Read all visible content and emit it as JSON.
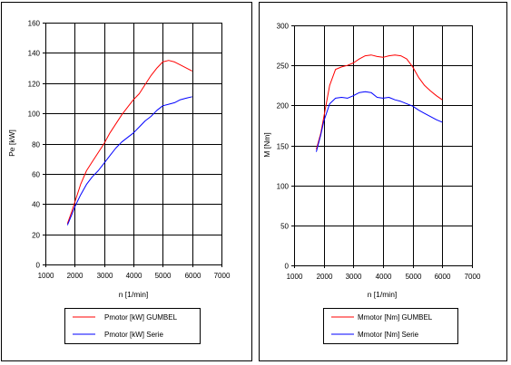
{
  "chart_data": [
    {
      "type": "line",
      "xlabel": "n [1/min]",
      "ylabel": "Pe [kW]",
      "xlim": [
        1000,
        7000
      ],
      "ylim": [
        0,
        160
      ],
      "xticks": [
        1000,
        2000,
        3000,
        4000,
        5000,
        6000,
        7000
      ],
      "yticks": [
        0,
        20,
        40,
        60,
        80,
        100,
        120,
        140,
        160
      ],
      "grid": true,
      "legend_position": "bottom",
      "series": [
        {
          "name": "Pmotor [kW] GUMBEL",
          "color": "#ff0000",
          "x": [
            1750,
            1900,
            2000,
            2200,
            2400,
            2600,
            2800,
            3000,
            3200,
            3400,
            3600,
            3800,
            4000,
            4200,
            4400,
            4600,
            4800,
            5000,
            5200,
            5400,
            5600,
            5800,
            6000
          ],
          "y": [
            27,
            35,
            41,
            53,
            62,
            68,
            74,
            80,
            87,
            93,
            99,
            104,
            109,
            113,
            119,
            125,
            130,
            134,
            135,
            134,
            132,
            130,
            128
          ]
        },
        {
          "name": "Pmotor [kW] Serie",
          "color": "#0000ff",
          "x": [
            1750,
            1900,
            2000,
            2200,
            2400,
            2600,
            2800,
            3000,
            3200,
            3400,
            3600,
            3800,
            4000,
            4200,
            4400,
            4600,
            4800,
            5000,
            5200,
            5400,
            5600,
            5800,
            6000
          ],
          "y": [
            26,
            33,
            38,
            46,
            53,
            58,
            62,
            67,
            72,
            77,
            81,
            84,
            87,
            91,
            95,
            98,
            102,
            105,
            106,
            107,
            109,
            110,
            111
          ]
        }
      ]
    },
    {
      "type": "line",
      "xlabel": "n [1/min]",
      "ylabel": "M [Nm]",
      "xlim": [
        1000,
        7000
      ],
      "ylim": [
        0,
        300
      ],
      "xticks": [
        1000,
        2000,
        3000,
        4000,
        5000,
        6000,
        7000
      ],
      "yticks": [
        0,
        50,
        100,
        150,
        200,
        250,
        300
      ],
      "grid": true,
      "legend_position": "bottom",
      "series": [
        {
          "name": "Mmotor [Nm] GUMBEL",
          "color": "#ff0000",
          "x": [
            1750,
            1900,
            2000,
            2200,
            2400,
            2600,
            2800,
            3000,
            3200,
            3400,
            3600,
            3800,
            4000,
            4200,
            4400,
            4600,
            4800,
            5000,
            5200,
            5400,
            5600,
            5800,
            6000
          ],
          "y": [
            145,
            165,
            185,
            225,
            245,
            248,
            250,
            253,
            258,
            262,
            263,
            261,
            260,
            262,
            263,
            262,
            258,
            248,
            235,
            225,
            218,
            212,
            207
          ]
        },
        {
          "name": "Mmotor [Nm] Serie",
          "color": "#0000ff",
          "x": [
            1750,
            1900,
            2000,
            2200,
            2400,
            2600,
            2800,
            3000,
            3200,
            3400,
            3600,
            3800,
            4000,
            4200,
            4400,
            4600,
            4800,
            5000,
            5200,
            5400,
            5600,
            5800,
            6000
          ],
          "y": [
            142,
            163,
            180,
            202,
            209,
            210,
            209,
            212,
            216,
            217,
            216,
            210,
            209,
            210,
            207,
            205,
            202,
            199,
            194,
            190,
            186,
            182,
            179
          ]
        }
      ]
    }
  ]
}
